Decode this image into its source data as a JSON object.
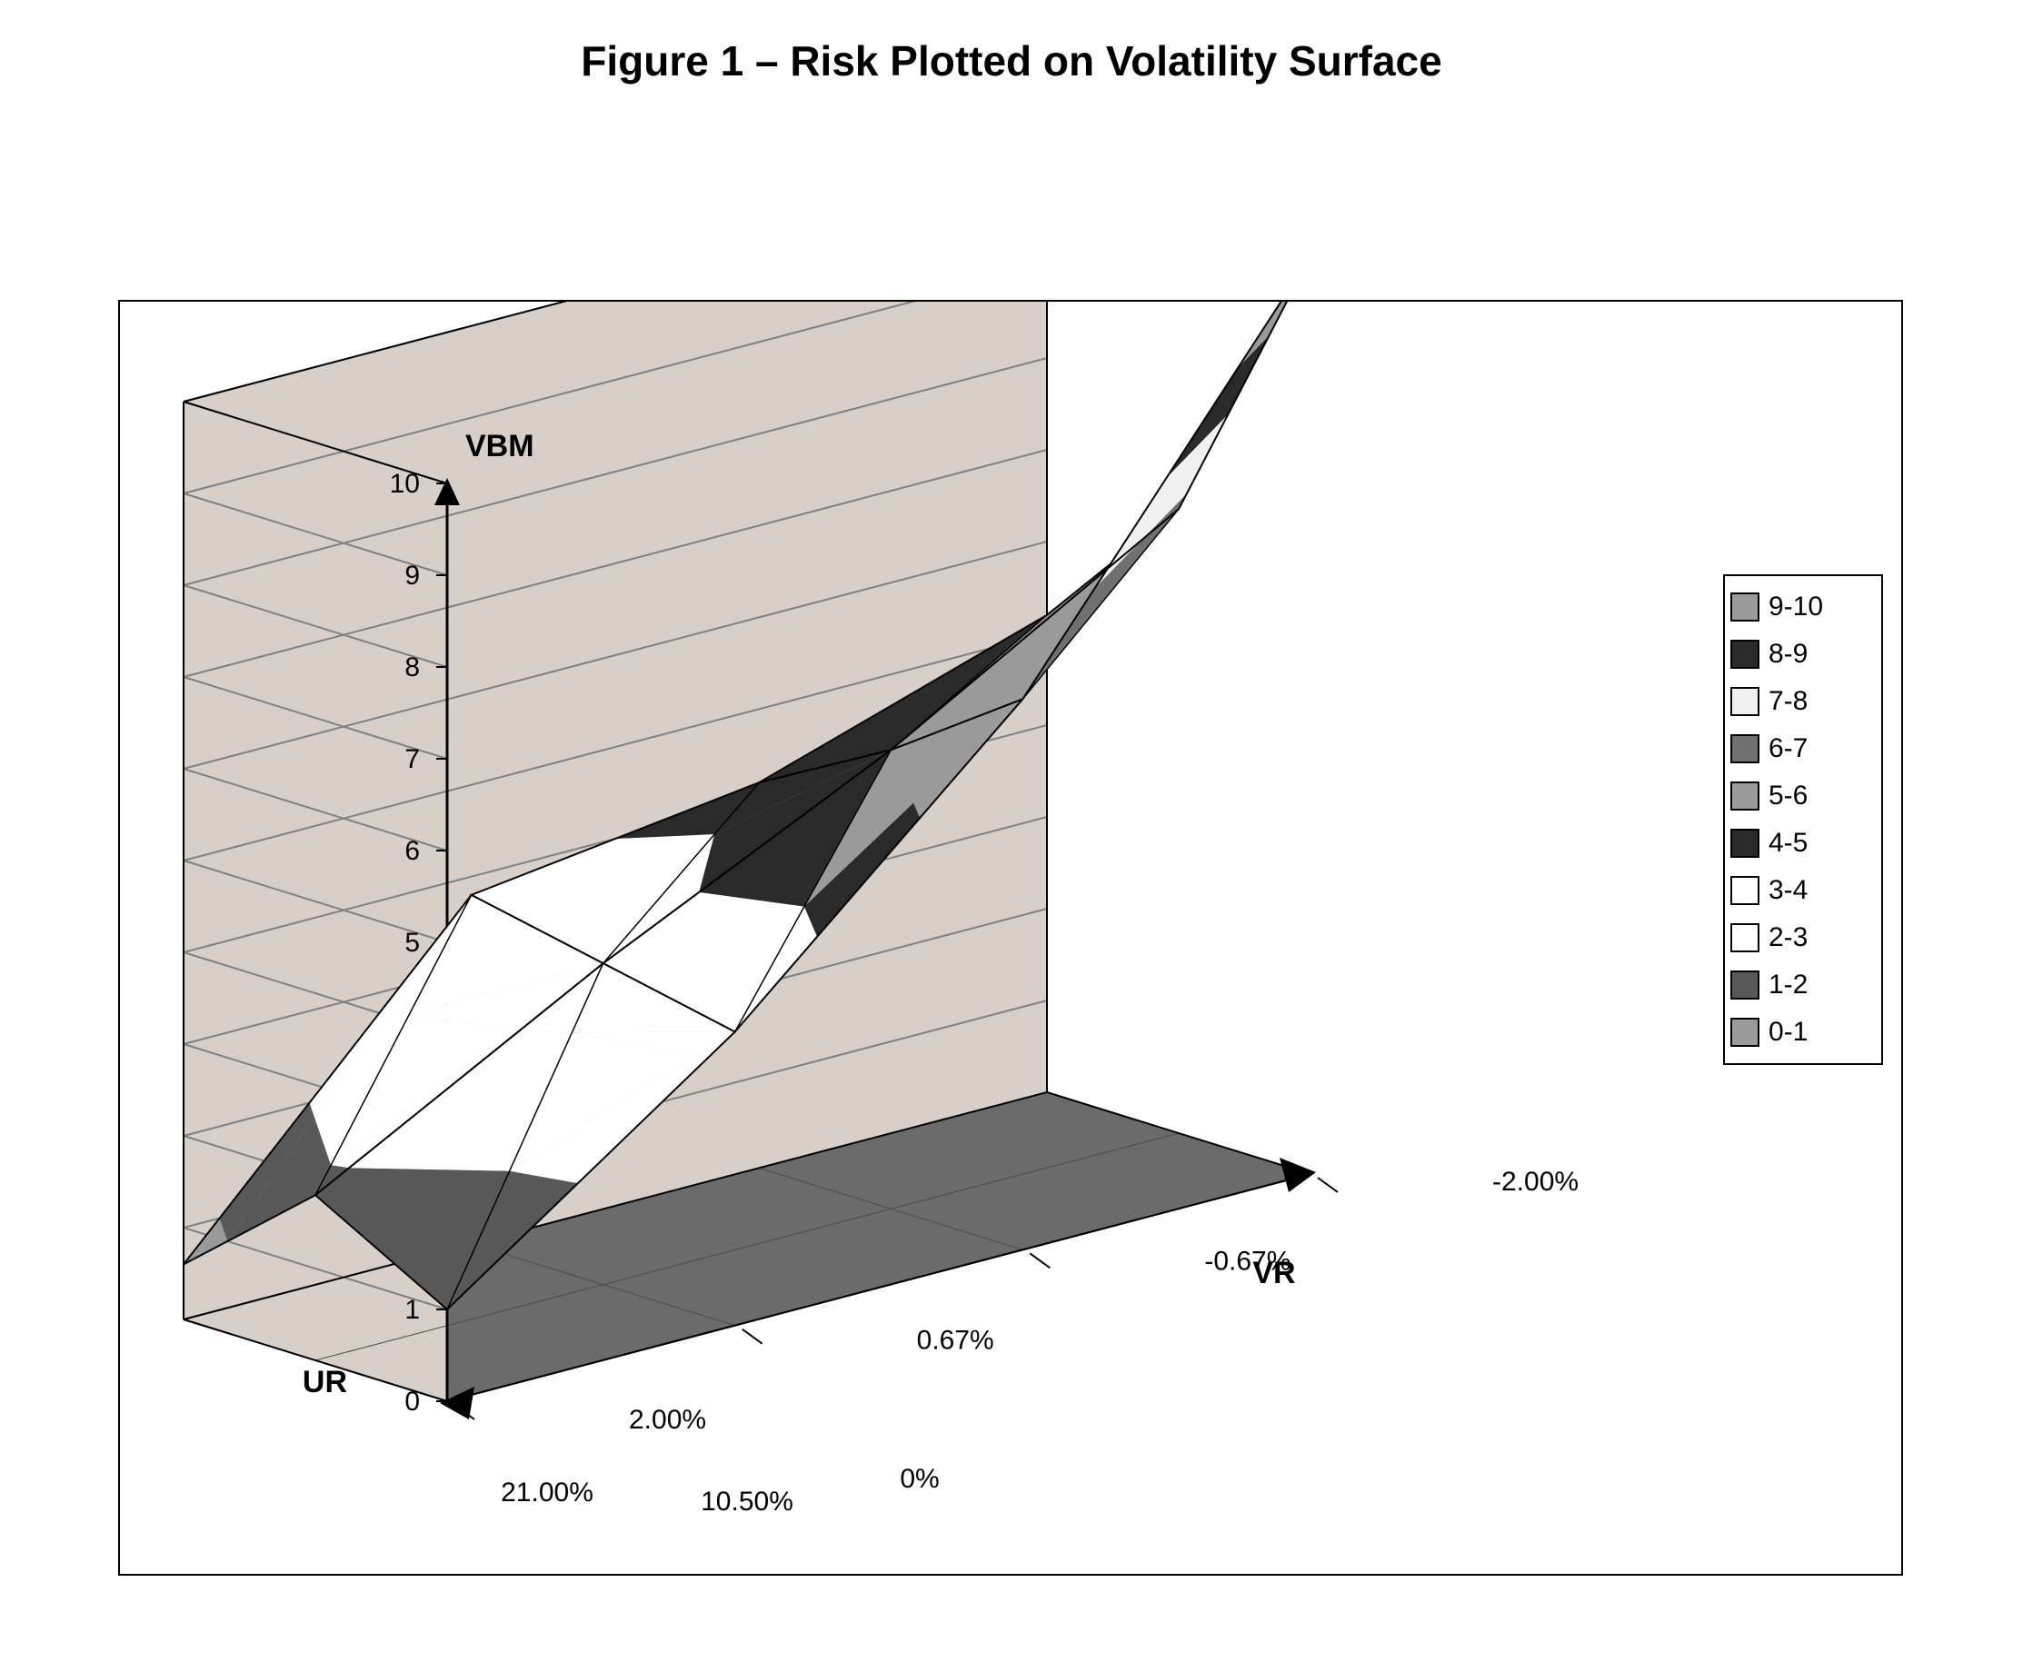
{
  "title": "Figure 1 – Risk Plotted on Volatility Surface",
  "chart": {
    "type": "surface-3d",
    "background_color": "#ffffff",
    "frame_border_color": "#000000",
    "wall_color": "#d8d0c8",
    "floor_color": "#6b6b6b",
    "gridline_color": "#808080",
    "axes": {
      "z": {
        "label": "VBM",
        "ticks": [
          0,
          1,
          2,
          3,
          4,
          5,
          6,
          7,
          8,
          9,
          10
        ],
        "range": [
          0,
          10
        ]
      },
      "x": {
        "label": "VR",
        "ticks": [
          "2.00%",
          "0.67%",
          "-0.67%",
          "-2.00%"
        ]
      },
      "y": {
        "label": "UR",
        "ticks": [
          "0%",
          "10.50%",
          "21.00%"
        ]
      }
    },
    "surface": {
      "ur_values": [
        "0%",
        "10.50%",
        "21.00%"
      ],
      "vr_values": [
        "2.00%",
        "0.67%",
        "-0.67%",
        "-2.00%"
      ],
      "z_grid": [
        [
          1.0,
          3.2,
          6.0,
          10.0
        ],
        [
          1.8,
          3.5,
          5.0,
          6.8
        ],
        [
          0.6,
          3.8,
          4.2,
          5.2
        ]
      ]
    },
    "legend": {
      "title": null,
      "items": [
        {
          "label": "9-10",
          "color": "#9a9a9a"
        },
        {
          "label": "8-9",
          "color": "#2a2a2a"
        },
        {
          "label": "7-8",
          "color": "#f0f0f0"
        },
        {
          "label": "6-7",
          "color": "#707070"
        },
        {
          "label": "5-6",
          "color": "#9a9a9a"
        },
        {
          "label": "4-5",
          "color": "#2a2a2a"
        },
        {
          "label": "3-4",
          "color": "#ffffff"
        },
        {
          "label": "2-3",
          "color": "#ffffff"
        },
        {
          "label": "1-2",
          "color": "#585858"
        },
        {
          "label": "0-1",
          "color": "#9a9a9a"
        }
      ]
    },
    "style": {
      "title_fontsize": 46,
      "axis_label_fontsize": 34,
      "tick_fontsize": 30,
      "legend_fontsize": 30,
      "surface_edge_color": "#000000",
      "surface_edge_width": 2
    }
  }
}
